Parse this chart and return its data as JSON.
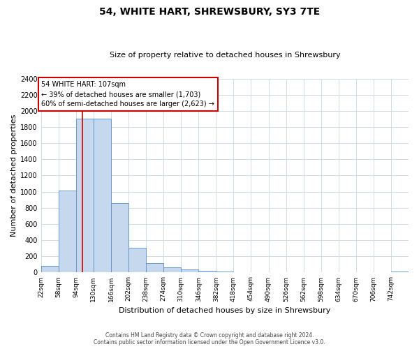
{
  "title1": "54, WHITE HART, SHREWSBURY, SY3 7TE",
  "title2": "Size of property relative to detached houses in Shrewsbury",
  "xlabel": "Distribution of detached houses by size in Shrewsbury",
  "ylabel": "Number of detached properties",
  "footer1": "Contains HM Land Registry data © Crown copyright and database right 2024.",
  "footer2": "Contains public sector information licensed under the Open Government Licence v3.0.",
  "bin_labels": [
    "22sqm",
    "58sqm",
    "94sqm",
    "130sqm",
    "166sqm",
    "202sqm",
    "238sqm",
    "274sqm",
    "310sqm",
    "346sqm",
    "382sqm",
    "418sqm",
    "454sqm",
    "490sqm",
    "526sqm",
    "562sqm",
    "598sqm",
    "634sqm",
    "670sqm",
    "706sqm",
    "742sqm"
  ],
  "bar_values": [
    80,
    1010,
    1900,
    1900,
    860,
    310,
    120,
    60,
    40,
    20,
    12,
    8,
    5,
    4,
    3,
    2,
    2,
    2,
    1,
    1,
    15
  ],
  "bin_edges": [
    22,
    58,
    94,
    130,
    166,
    202,
    238,
    274,
    310,
    346,
    382,
    418,
    454,
    490,
    526,
    562,
    598,
    634,
    670,
    706,
    742,
    778
  ],
  "bar_color": "#c5d8ee",
  "bar_edge_color": "#5b8fc9",
  "grid_color": "#d0dce8",
  "property_size": 107,
  "red_line_color": "#cc0000",
  "annotation_text1": "54 WHITE HART: 107sqm",
  "annotation_text2": "← 39% of detached houses are smaller (1,703)",
  "annotation_text3": "60% of semi-detached houses are larger (2,623) →",
  "annotation_box_facecolor": "#ffffff",
  "annotation_box_edgecolor": "#cc0000",
  "ylim": [
    0,
    2400
  ],
  "yticks": [
    0,
    200,
    400,
    600,
    800,
    1000,
    1200,
    1400,
    1600,
    1800,
    2000,
    2200,
    2400
  ],
  "bg_color": "#ffffff",
  "plot_bg_color": "#ffffff",
  "title1_fontsize": 10,
  "title2_fontsize": 8,
  "ylabel_fontsize": 8,
  "xlabel_fontsize": 8,
  "tick_fontsize": 7,
  "ann_fontsize": 7
}
